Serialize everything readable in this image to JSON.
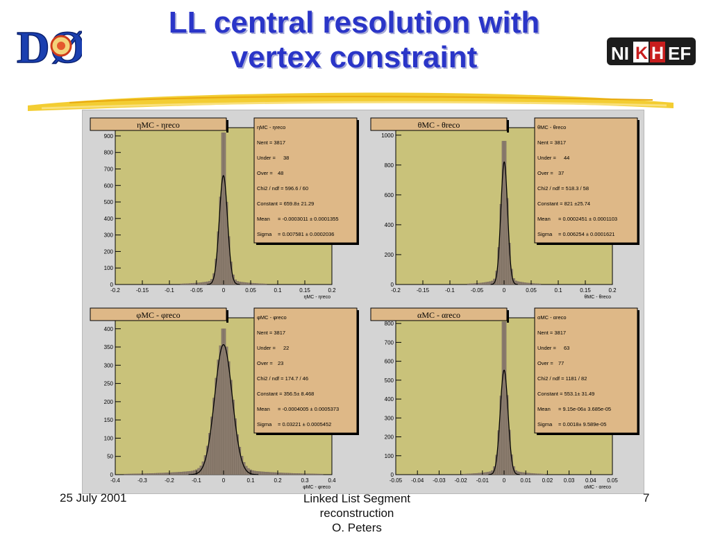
{
  "slide": {
    "title_line1": "LL central resolution with",
    "title_line2": "vertex constraint",
    "logo_left": "DØ",
    "logo_right_text": [
      "NI",
      "K",
      "H",
      "EF"
    ],
    "footer_date": "25 July 2001",
    "footer_mid_1": "Linked List Segment",
    "footer_mid_2": "reconstruction",
    "footer_mid_3": "O. Peters",
    "page_number": "7"
  },
  "colors": {
    "title": "#2a35c8",
    "plot_bg": "#c9c27a",
    "stats_bg": "#deb887",
    "hist_fill": "#8a7b6d",
    "frame_bg": "#d4d4d4"
  },
  "chart_data": [
    {
      "type": "bar",
      "title": "ηMC - ηreco",
      "xlabel": "ηMC - ηreco",
      "xlim": [
        -0.2,
        0.2
      ],
      "ylim": [
        0,
        950
      ],
      "xticks": [
        "-0.2",
        "-0.15",
        "-0.1",
        "-0.05",
        "0",
        "0.05",
        "0.1",
        "0.15",
        "0.2"
      ],
      "yticks": [
        "0",
        "100",
        "200",
        "300",
        "400",
        "500",
        "600",
        "700",
        "800",
        "900"
      ],
      "fit": {
        "constant": 659.8,
        "mean": -0.0003011,
        "sigma": 0.007581
      },
      "peak": 920,
      "stats": [
        {
          "label": "ηMC - ηreco",
          "value": ""
        },
        {
          "label": "Nent = 3817",
          "value": ""
        },
        {
          "label": "Under =",
          "value": "38"
        },
        {
          "label": "Over =",
          "value": "48"
        },
        {
          "label": "Chi2 / ndf = 596.6 / 60",
          "value": ""
        },
        {
          "label": "Constant = 659.8± 21.29",
          "value": ""
        },
        {
          "label": "Mean",
          "value": "= -0.0003011 ± 0.0001355"
        },
        {
          "label": "Sigma",
          "value": "= 0.007581 ± 0.0002036"
        }
      ]
    },
    {
      "type": "bar",
      "title": "θMC - θreco",
      "xlabel": "θMC - θreco",
      "xlim": [
        -0.2,
        0.2
      ],
      "ylim": [
        0,
        1050
      ],
      "xticks": [
        "-0.2",
        "-0.15",
        "-0.1",
        "-0.05",
        "0",
        "0.05",
        "0.1",
        "0.15",
        "0.2"
      ],
      "yticks": [
        "0",
        "200",
        "400",
        "600",
        "800",
        "1000"
      ],
      "fit": {
        "constant": 821,
        "mean": 0.0002451,
        "sigma": 0.006254
      },
      "peak": 960,
      "stats": [
        {
          "label": "θMC - θreco",
          "value": ""
        },
        {
          "label": "Nent = 3817",
          "value": ""
        },
        {
          "label": "Under =",
          "value": "44"
        },
        {
          "label": "Over =",
          "value": "37"
        },
        {
          "label": "Chi2 / ndf = 518.3 / 58",
          "value": ""
        },
        {
          "label": "Constant = 821 ±25.74",
          "value": ""
        },
        {
          "label": "Mean",
          "value": "= 0.0002451 ± 0.0001103"
        },
        {
          "label": "Sigma",
          "value": "= 0.006254 ± 0.0001621"
        }
      ]
    },
    {
      "type": "bar",
      "title": "φMC - φreco",
      "xlabel": "φMC - φreco",
      "xlim": [
        -0.4,
        0.4
      ],
      "ylim": [
        0,
        430
      ],
      "xticks": [
        "-0.4",
        "-0.3",
        "-0.2",
        "-0.1",
        "0",
        "0.1",
        "0.2",
        "0.3",
        "0.4"
      ],
      "yticks": [
        "0",
        "50",
        "100",
        "150",
        "200",
        "250",
        "300",
        "350",
        "400"
      ],
      "fit": {
        "constant": 356.5,
        "mean": -0.0004005,
        "sigma": 0.03221
      },
      "peak": 400,
      "stats": [
        {
          "label": "φMC - φreco",
          "value": ""
        },
        {
          "label": "Nent = 3817",
          "value": ""
        },
        {
          "label": "Under =",
          "value": "22"
        },
        {
          "label": "Over =",
          "value": "23"
        },
        {
          "label": "Chi2 / ndf = 174.7 / 46",
          "value": ""
        },
        {
          "label": "Constant = 356.5± 8.468",
          "value": ""
        },
        {
          "label": "Mean",
          "value": "= -0.0004005 ± 0.0005373"
        },
        {
          "label": "Sigma",
          "value": "= 0.03221 ± 0.0005452"
        }
      ]
    },
    {
      "type": "bar",
      "title": "αMC - αreco",
      "xlabel": "αMC - αreco",
      "xlim": [
        -0.05,
        0.05
      ],
      "ylim": [
        0,
        830
      ],
      "xticks": [
        "-0.05",
        "-0.04",
        "-0.03",
        "-0.02",
        "-0.01",
        "0",
        "0.01",
        "0.02",
        "0.03",
        "0.04",
        "0.05"
      ],
      "yticks": [
        "0",
        "100",
        "200",
        "300",
        "400",
        "500",
        "600",
        "700",
        "800"
      ],
      "fit": {
        "constant": 553.1,
        "mean": 9.15e-06,
        "sigma": 0.0018
      },
      "peak": 810,
      "stats": [
        {
          "label": "αMC - αreco",
          "value": ""
        },
        {
          "label": "Nent = 3817",
          "value": ""
        },
        {
          "label": "Under =",
          "value": "63"
        },
        {
          "label": "Over =",
          "value": "77"
        },
        {
          "label": "Chi2 / ndf = 1181 / 82",
          "value": ""
        },
        {
          "label": "Constant = 553.1± 31.49",
          "value": ""
        },
        {
          "label": "Mean",
          "value": "= 9.15e-06± 3.685e-05"
        },
        {
          "label": "Sigma",
          "value": "= 0.0018± 9.589e-05"
        }
      ]
    }
  ]
}
